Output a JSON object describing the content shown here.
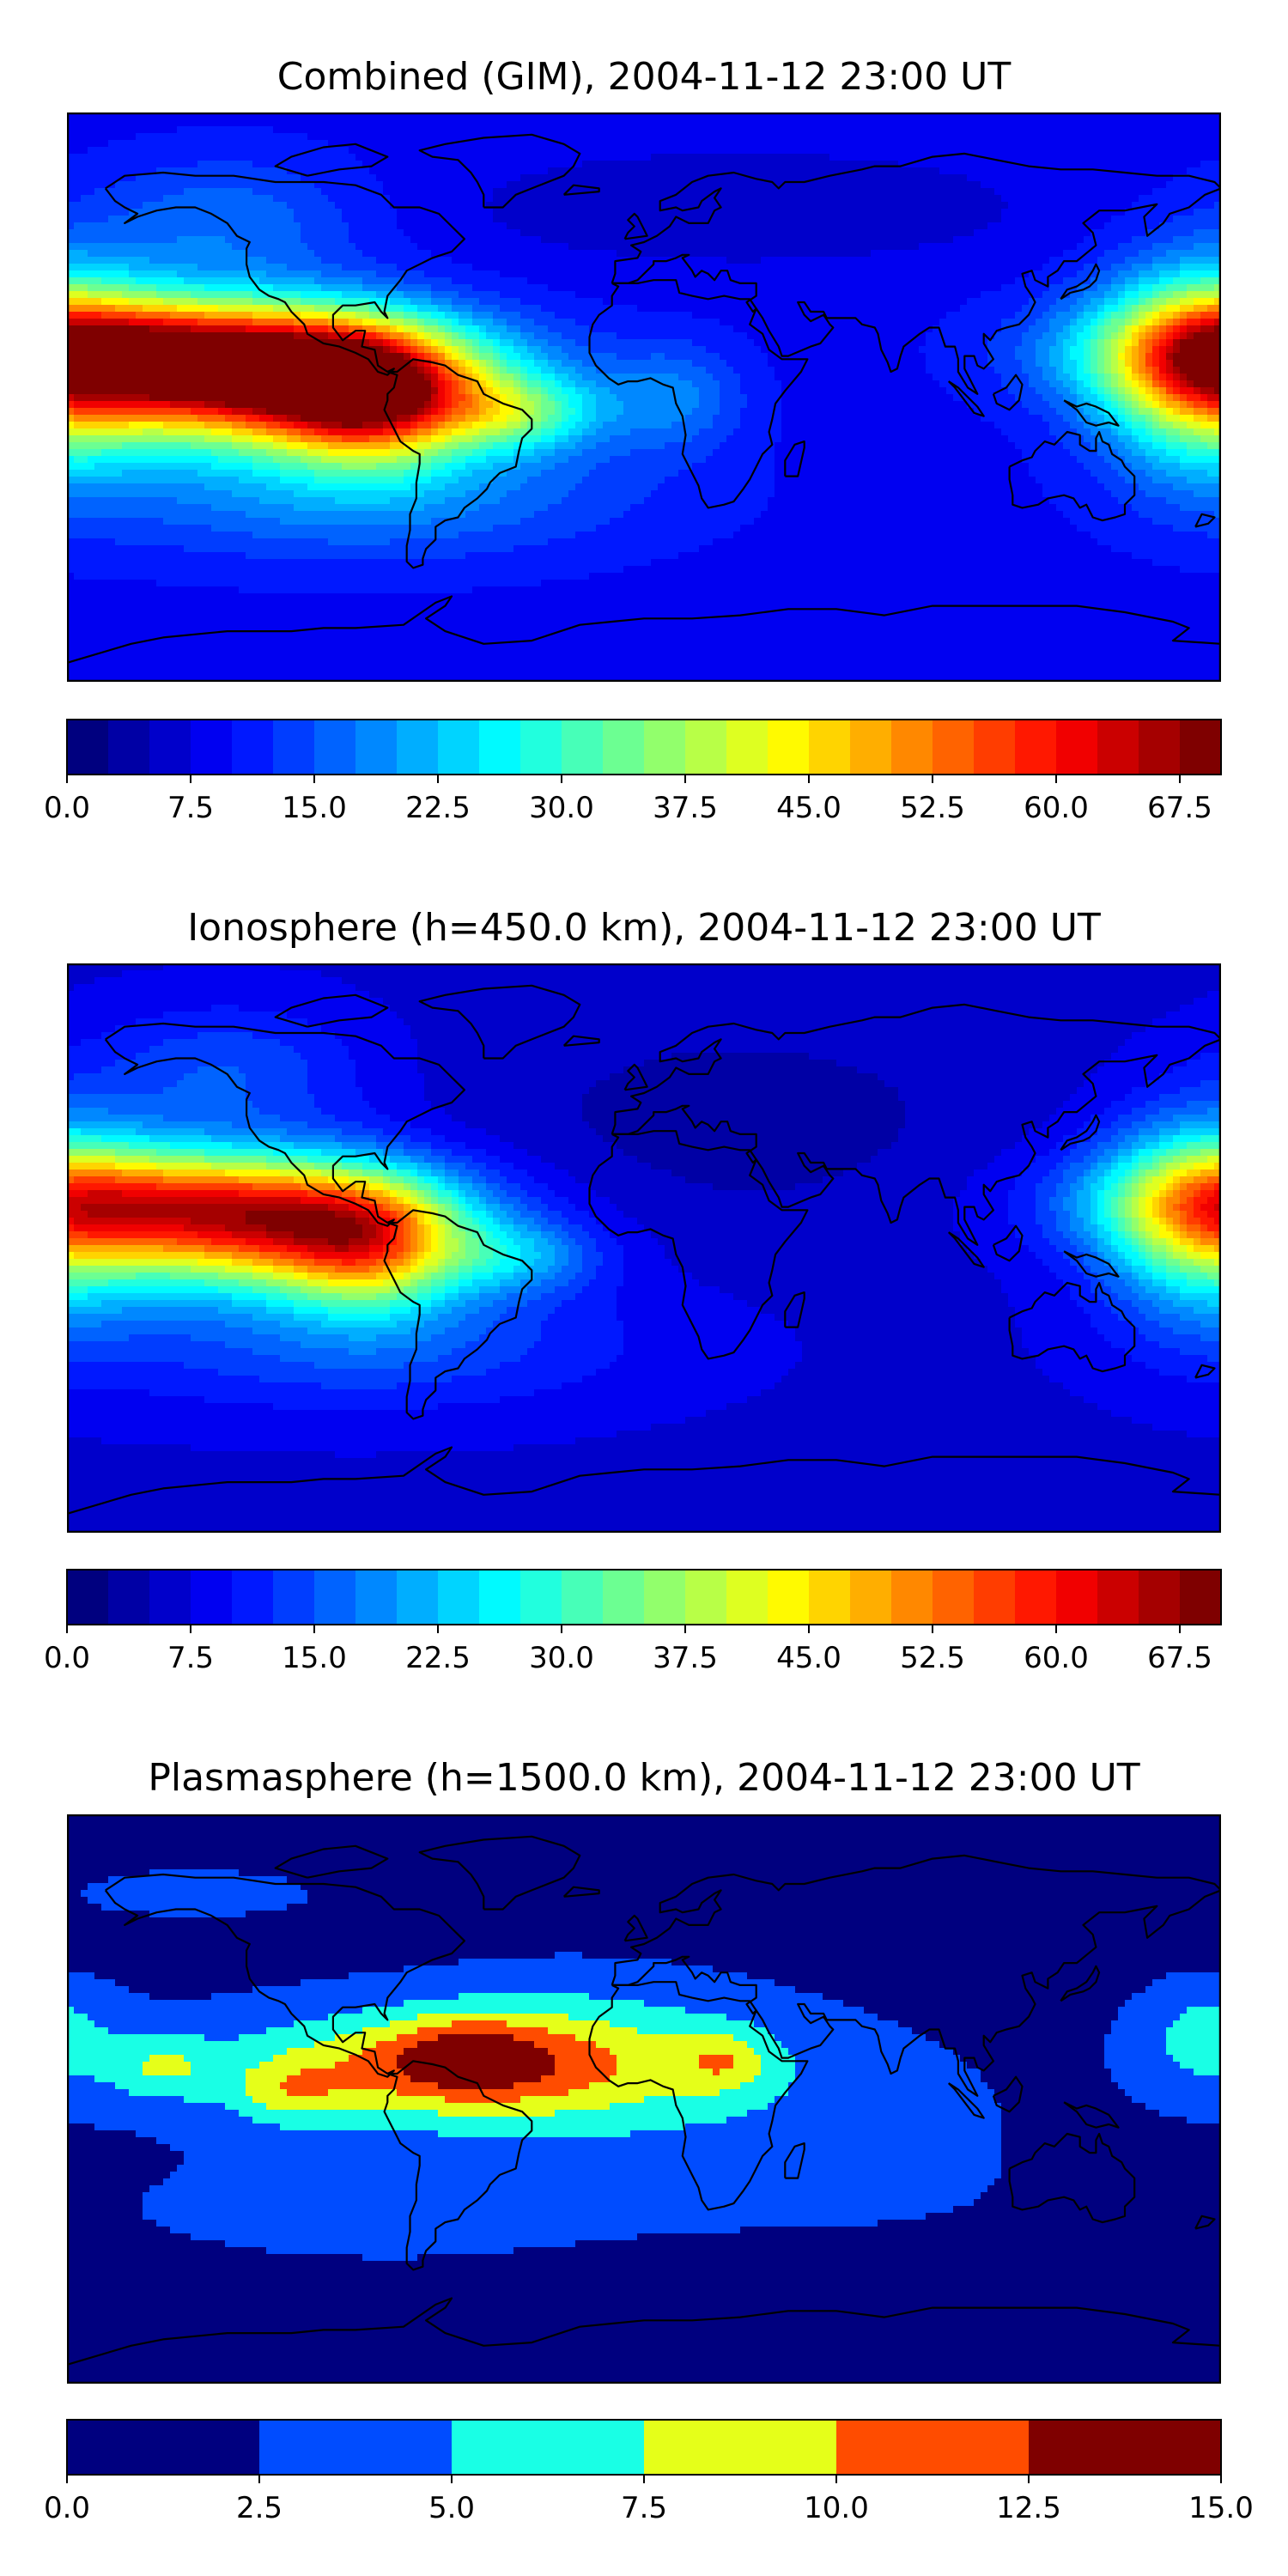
{
  "panels": [
    {
      "title": "Combined (GIM), 2004-11-12 23:00 UT",
      "colorbar": {
        "min": 0.0,
        "max": 70.0,
        "step": 2.5,
        "tick_labels": [
          "0.0",
          "7.5",
          "15.0",
          "22.5",
          "30.0",
          "37.5",
          "45.0",
          "52.5",
          "60.0",
          "67.5"
        ],
        "tick_values": [
          0.0,
          7.5,
          15.0,
          22.5,
          30.0,
          37.5,
          45.0,
          52.5,
          60.0,
          67.5
        ]
      },
      "field": {
        "background": 9,
        "features": [
          {
            "lon": -130,
            "lat": 55,
            "sx": 30,
            "sy": 15,
            "a": 8
          },
          {
            "lon": -150,
            "lat": 15,
            "sx": 45,
            "sy": 12,
            "a": 40
          },
          {
            "lon": -110,
            "lat": 4,
            "sx": 45,
            "sy": 14,
            "a": 50
          },
          {
            "lon": -85,
            "lat": 0,
            "sx": 20,
            "sy": 15,
            "a": 28
          },
          {
            "lon": -40,
            "lat": -5,
            "sx": 18,
            "sy": 8,
            "a": 16
          },
          {
            "lon": 10,
            "lat": 0,
            "sx": 15,
            "sy": 12,
            "a": 8
          },
          {
            "lon": 175,
            "lat": 10,
            "sx": 22,
            "sy": 22,
            "a": 30
          },
          {
            "lon": -90,
            "lat": -30,
            "sx": 60,
            "sy": 15,
            "a": 10
          },
          {
            "lon": 30,
            "lat": 60,
            "sx": 60,
            "sy": 12,
            "a": -4
          }
        ]
      }
    },
    {
      "title": "Ionosphere  (h=450.0 km), 2004-11-12 23:00 UT",
      "colorbar": {
        "min": 0.0,
        "max": 70.0,
        "step": 2.5,
        "tick_labels": [
          "0.0",
          "7.5",
          "15.0",
          "22.5",
          "30.0",
          "37.5",
          "45.0",
          "52.5",
          "60.0",
          "67.5"
        ],
        "tick_values": [
          0.0,
          7.5,
          15.0,
          22.5,
          30.0,
          37.5,
          45.0,
          52.5,
          60.0,
          67.5
        ]
      },
      "field": {
        "background": 7,
        "features": [
          {
            "lon": -130,
            "lat": 55,
            "sx": 30,
            "sy": 15,
            "a": 8
          },
          {
            "lon": -150,
            "lat": 15,
            "sx": 45,
            "sy": 12,
            "a": 32
          },
          {
            "lon": -110,
            "lat": 5,
            "sx": 40,
            "sy": 14,
            "a": 38
          },
          {
            "lon": -85,
            "lat": 0,
            "sx": 18,
            "sy": 15,
            "a": 20
          },
          {
            "lon": -40,
            "lat": -3,
            "sx": 18,
            "sy": 8,
            "a": 10
          },
          {
            "lon": 175,
            "lat": 10,
            "sx": 22,
            "sy": 22,
            "a": 25
          },
          {
            "lon": -90,
            "lat": -30,
            "sx": 60,
            "sy": 15,
            "a": 8
          },
          {
            "lon": 30,
            "lat": 40,
            "sx": 60,
            "sy": 25,
            "a": -3
          }
        ]
      }
    },
    {
      "title": "Plasmasphere (h=1500.0 km), 2004-11-12 23:00 UT",
      "colorbar": {
        "min": 0.0,
        "max": 15.0,
        "step": 2.5,
        "tick_labels": [
          "0.0",
          "2.5",
          "5.0",
          "7.5",
          "10.0",
          "12.5",
          "15.0"
        ],
        "tick_values": [
          0.0,
          2.5,
          5.0,
          7.5,
          10.0,
          12.5,
          15.0
        ]
      },
      "field": {
        "background": 1.5,
        "features": [
          {
            "lon": -60,
            "lat": 10,
            "sx": 70,
            "sy": 15,
            "a": 5
          },
          {
            "lon": -60,
            "lat": 10,
            "sx": 35,
            "sy": 10,
            "a": 4.5
          },
          {
            "lon": -150,
            "lat": 10,
            "sx": 12,
            "sy": 7,
            "a": 4
          },
          {
            "lon": -110,
            "lat": 2,
            "sx": 12,
            "sy": 7,
            "a": 4
          },
          {
            "lon": -55,
            "lat": 15,
            "sx": 15,
            "sy": 8,
            "a": 3.5
          },
          {
            "lon": 25,
            "lat": 12,
            "sx": 10,
            "sy": 7,
            "a": 4
          },
          {
            "lon": -20,
            "lat": 15,
            "sx": 40,
            "sy": 18,
            "a": 3
          },
          {
            "lon": 175,
            "lat": 20,
            "sx": 15,
            "sy": 12,
            "a": 4
          },
          {
            "lon": -60,
            "lat": -35,
            "sx": 80,
            "sy": 14,
            "a": 2
          },
          {
            "lon": 60,
            "lat": -15,
            "sx": 50,
            "sy": 25,
            "a": 1.5
          },
          {
            "lon": 30,
            "lat": -50,
            "sx": 50,
            "sy": 10,
            "a": -1
          },
          {
            "lon": -140,
            "lat": 65,
            "sx": 30,
            "sy": 6,
            "a": 2
          }
        ]
      }
    }
  ],
  "colors": {
    "jet_stops": [
      "#00007f",
      "#0000ff",
      "#007fff",
      "#00ffff",
      "#7fff7f",
      "#ffff00",
      "#ff7f00",
      "#ff0000",
      "#7f0000"
    ],
    "coastline": "#000000",
    "frame": "#000000"
  }
}
